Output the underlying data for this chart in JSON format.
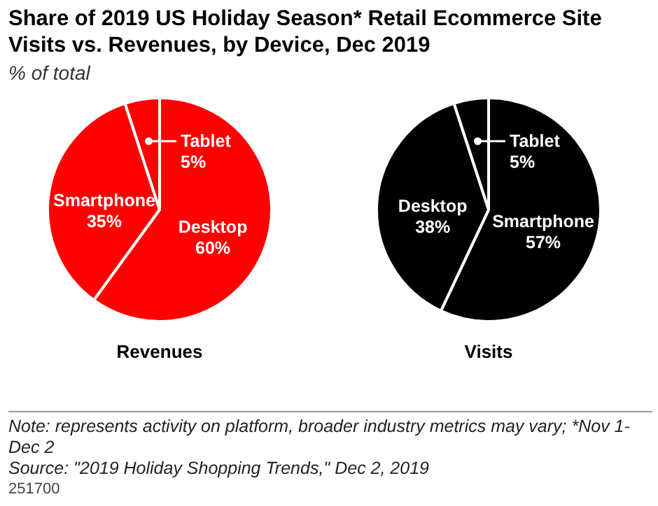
{
  "chart_data": [
    {
      "type": "pie",
      "title": "Share of 2019 US Holiday Season* Retail Ecommerce Site Visits vs. Revenues, by Device, Dec 2019",
      "subtitle": "% of total",
      "xlabel": "Revenues",
      "categories": [
        "Desktop",
        "Smartphone",
        "Tablet"
      ],
      "values": [
        60,
        35,
        5
      ],
      "value_labels": [
        "60%",
        "35%",
        "5%"
      ],
      "colors": [
        "#ff0000",
        "#ff0000",
        "#ff0000"
      ],
      "annotations": [
        "Note: represents activity on platform, broader industry metrics may vary; *Nov 1- Dec 2",
        "Source: \"2019 Holiday Shopping Trends,\" Dec 2, 2019",
        "251700"
      ]
    },
    {
      "type": "pie",
      "xlabel": "Visits",
      "categories": [
        "Smartphone",
        "Desktop",
        "Tablet"
      ],
      "values": [
        57,
        38,
        5
      ],
      "value_labels": [
        "57%",
        "38%",
        "5%"
      ],
      "colors": [
        "#000000",
        "#000000",
        "#000000"
      ]
    }
  ]
}
